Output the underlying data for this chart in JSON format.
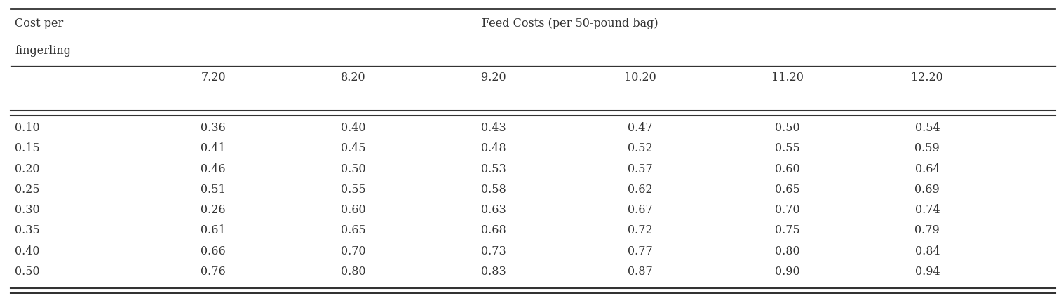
{
  "col_header_line1": "Feed Costs (per 50-pound bag)",
  "row_header_line1": "Cost per",
  "row_header_line2": "fingerling",
  "feed_costs": [
    "7.20",
    "8.20",
    "9.20",
    "10.20",
    "11.20",
    "12.20"
  ],
  "fingerling_costs": [
    "0.10",
    "0.15",
    "0.20",
    "0.25",
    "0.30",
    "0.35",
    "0.40",
    "0.50"
  ],
  "table_data": [
    [
      "0.36",
      "0.40",
      "0.43",
      "0.47",
      "0.50",
      "0.54"
    ],
    [
      "0.41",
      "0.45",
      "0.48",
      "0.52",
      "0.55",
      "0.59"
    ],
    [
      "0.46",
      "0.50",
      "0.53",
      "0.57",
      "0.60",
      "0.64"
    ],
    [
      "0.51",
      "0.55",
      "0.58",
      "0.62",
      "0.65",
      "0.69"
    ],
    [
      "0.26",
      "0.60",
      "0.63",
      "0.67",
      "0.70",
      "0.74"
    ],
    [
      "0.61",
      "0.65",
      "0.68",
      "0.72",
      "0.75",
      "0.79"
    ],
    [
      "0.66",
      "0.70",
      "0.73",
      "0.77",
      "0.80",
      "0.84"
    ],
    [
      "0.76",
      "0.80",
      "0.83",
      "0.87",
      "0.90",
      "0.94"
    ]
  ],
  "bg_color": "#ffffff",
  "text_color": "#333333",
  "line_color": "#333333",
  "font_size": 11.5,
  "header_font_size": 11.5
}
